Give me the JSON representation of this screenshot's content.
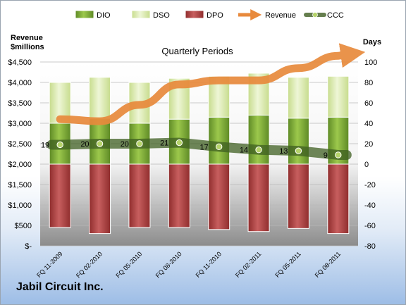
{
  "chart_data": {
    "type": "bar",
    "title": "Quarterly Periods",
    "left_axis_label_line1": "Revenue",
    "left_axis_label_line2": "$millions",
    "right_axis_label": "Days",
    "company": "Jabil Circuit Inc.",
    "categories": [
      "FQ 11-2009",
      "FQ 02-2010",
      "FQ 05-2010",
      "FQ 08-2010",
      "FQ 11-2010",
      "FQ 02-2011",
      "FQ 05-2011",
      "FQ 08-2011"
    ],
    "left_ticks": [
      "$-",
      "$500",
      "$1,000",
      "$1,500",
      "$2,000",
      "$2,500",
      "$3,000",
      "$3,500",
      "$4,000",
      "$4,500"
    ],
    "right_ticks": [
      "-80",
      "-60",
      "-40",
      "-20",
      "0",
      "20",
      "40",
      "60",
      "80",
      "100"
    ],
    "ylim_days": [
      -80,
      100
    ],
    "ylim_revenue": [
      0,
      4500
    ],
    "series": [
      {
        "name": "DIO",
        "values": [
          40,
          45,
          40,
          44,
          46,
          48,
          45,
          46
        ]
      },
      {
        "name": "DSO",
        "values": [
          40,
          40,
          40,
          40,
          40,
          41,
          40,
          40
        ]
      },
      {
        "name": "DPO",
        "values": [
          -62,
          -68,
          -62,
          -62,
          -64,
          -66,
          -63,
          -68
        ]
      },
      {
        "name": "Revenue",
        "values": [
          3100,
          3050,
          3450,
          3950,
          4050,
          4050,
          4350,
          4650
        ]
      },
      {
        "name": "CCC",
        "values": [
          19,
          20,
          20,
          21,
          17,
          14,
          13,
          9
        ]
      }
    ],
    "ccc_labels": [
      "19",
      "20",
      "20",
      "21",
      "17",
      "14",
      "13",
      "9"
    ],
    "colors": {
      "DIO": "#77a033",
      "DIO_light": "#a8d05a",
      "DSO": "#d7e8a6",
      "DSO_light": "#eef6d8",
      "DPO": "#b03e3e",
      "DPO_light": "#d57a7a",
      "Revenue": "#e88a3c",
      "CCC": "#4a6a2c"
    },
    "grid": true,
    "legend_position": "top"
  }
}
